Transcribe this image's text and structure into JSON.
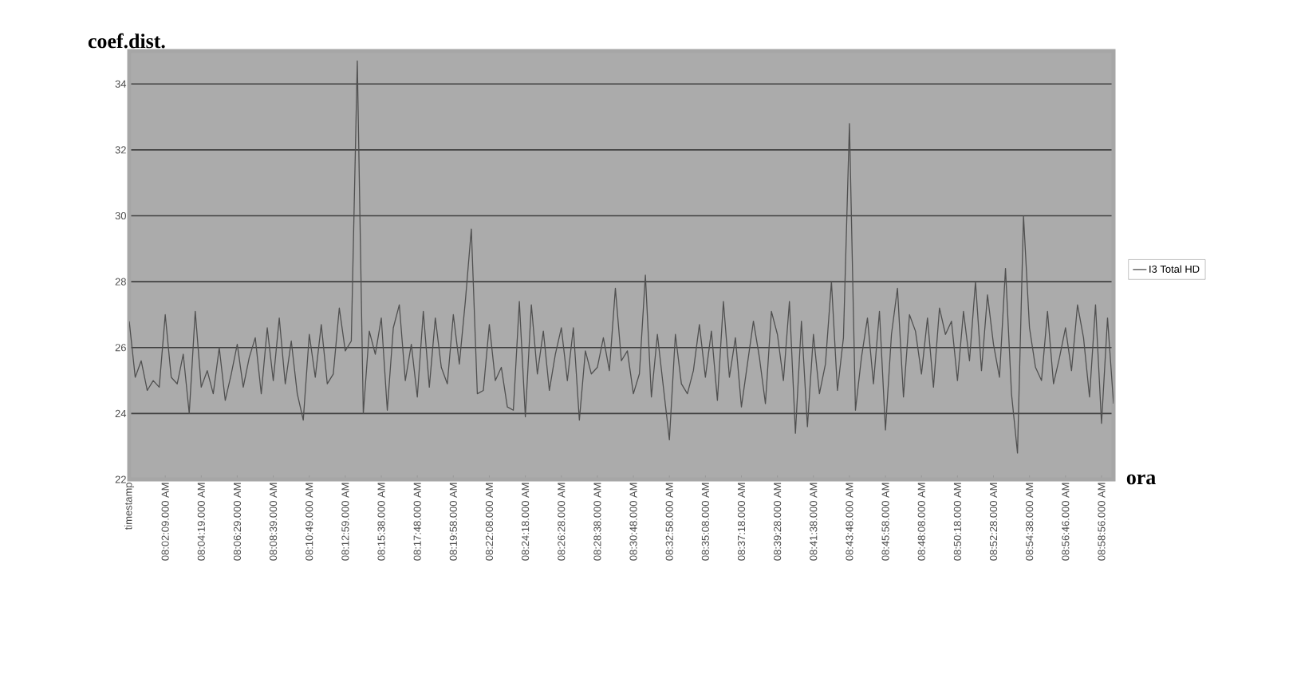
{
  "chart_data": {
    "type": "line",
    "ylabel": "coef.dist.",
    "xlabel": "ora",
    "categories": [
      "timestamp",
      null,
      null,
      null,
      null,
      null,
      "08:02:09.000 AM",
      null,
      null,
      null,
      null,
      null,
      "08:04:19.000 AM",
      null,
      null,
      null,
      null,
      null,
      "08:06:29.000 AM",
      null,
      null,
      null,
      null,
      null,
      "08:08:39.000 AM",
      null,
      null,
      null,
      null,
      null,
      "08:10:49.000 AM",
      null,
      null,
      null,
      null,
      null,
      "08:12:59.000 AM",
      null,
      null,
      null,
      null,
      null,
      "08:15:38.000 AM",
      null,
      null,
      null,
      null,
      null,
      "08:17:48.000 AM",
      null,
      null,
      null,
      null,
      null,
      "08:19:58.000 AM",
      null,
      null,
      null,
      null,
      null,
      "08:22:08.000 AM",
      null,
      null,
      null,
      null,
      null,
      "08:24:18.000 AM",
      null,
      null,
      null,
      null,
      null,
      "08:26:28.000 AM",
      null,
      null,
      null,
      null,
      null,
      "08:28:38.000 AM",
      null,
      null,
      null,
      null,
      null,
      "08:30:48.000 AM",
      null,
      null,
      null,
      null,
      null,
      "08:32:58.000 AM",
      null,
      null,
      null,
      null,
      null,
      "08:35:08.000 AM",
      null,
      null,
      null,
      null,
      null,
      "08:37:18.000 AM",
      null,
      null,
      null,
      null,
      null,
      "08:39:28.000 AM",
      null,
      null,
      null,
      null,
      null,
      "08:41:38.000 AM",
      null,
      null,
      null,
      null,
      null,
      "08:43:48.000 AM",
      null,
      null,
      null,
      null,
      null,
      "08:45:58.000 AM",
      null,
      null,
      null,
      null,
      null,
      "08:48:08.000 AM",
      null,
      null,
      null,
      null,
      null,
      "08:50:18.000 AM",
      null,
      null,
      null,
      null,
      null,
      "08:52:28.000 AM",
      null,
      null,
      null,
      null,
      null,
      "08:54:38.000 AM",
      null,
      null,
      null,
      null,
      null,
      "08:56:46.000 AM",
      null,
      null,
      null,
      null,
      null,
      "08:58:56.000 AM",
      null,
      null
    ],
    "series": [
      {
        "name": "I3 Total HD",
        "color": "#505050",
        "values": [
          26.8,
          25.1,
          25.6,
          24.7,
          25.0,
          24.8,
          27.0,
          25.1,
          24.9,
          25.8,
          24.0,
          27.1,
          24.8,
          25.3,
          24.6,
          26.0,
          24.4,
          25.2,
          26.1,
          24.8,
          25.7,
          26.3,
          24.6,
          26.6,
          25.0,
          26.9,
          24.9,
          26.2,
          24.6,
          23.8,
          26.4,
          25.1,
          26.7,
          24.9,
          25.2,
          27.2,
          25.9,
          26.2,
          34.7,
          24.0,
          26.5,
          25.8,
          26.9,
          24.1,
          26.6,
          27.3,
          25.0,
          26.1,
          24.5,
          27.1,
          24.8,
          26.9,
          25.4,
          24.9,
          27.0,
          25.5,
          27.4,
          29.6,
          24.6,
          24.7,
          26.7,
          25.0,
          25.4,
          24.2,
          24.1,
          27.4,
          23.9,
          27.3,
          25.2,
          26.5,
          24.7,
          25.8,
          26.6,
          25.0,
          26.6,
          23.8,
          25.9,
          25.2,
          25.4,
          26.3,
          25.3,
          27.8,
          25.6,
          25.9,
          24.6,
          25.2,
          28.2,
          24.5,
          26.4,
          24.8,
          23.2,
          26.4,
          24.9,
          24.6,
          25.3,
          26.7,
          25.1,
          26.5,
          24.4,
          27.4,
          25.1,
          26.3,
          24.2,
          25.5,
          26.8,
          25.7,
          24.3,
          27.1,
          26.4,
          25.0,
          27.4,
          23.4,
          26.8,
          23.6,
          26.4,
          24.6,
          25.5,
          28.0,
          24.7,
          26.3,
          32.8,
          24.1,
          25.7,
          26.9,
          24.9,
          27.1,
          23.5,
          26.4,
          27.8,
          24.5,
          27.0,
          26.5,
          25.2,
          26.9,
          24.8,
          27.2,
          26.4,
          26.8,
          25.0,
          27.1,
          25.6,
          28.0,
          25.3,
          27.6,
          26.1,
          25.1,
          28.4,
          24.6,
          22.8,
          30.0,
          26.6,
          25.4,
          25.0,
          27.1,
          24.9,
          25.7,
          26.6,
          25.3,
          27.3,
          26.3,
          24.5,
          27.3,
          23.7,
          26.9,
          24.3
        ]
      }
    ],
    "ylim": [
      22,
      35
    ],
    "yticks": [
      22,
      24,
      26,
      28,
      30,
      32,
      34
    ],
    "grid": "y",
    "legend": "right",
    "marker": "none",
    "line_style": "solid"
  }
}
